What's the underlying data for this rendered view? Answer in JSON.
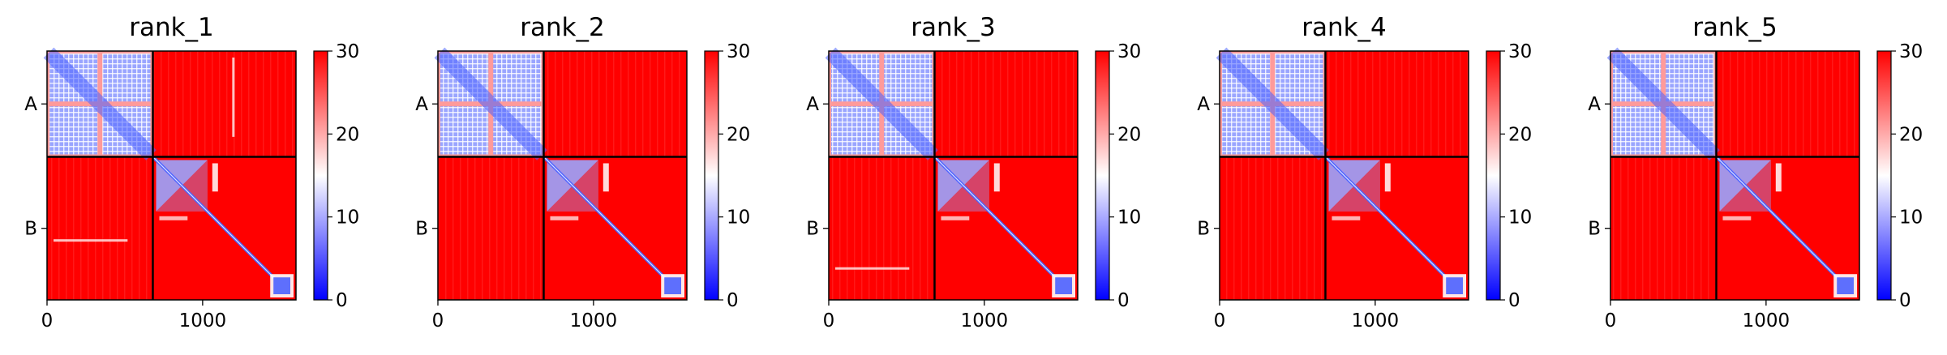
{
  "chart_data": [
    {
      "type": "heatmap",
      "title": "rank_1",
      "xlabel": "",
      "ylabel": "",
      "xlim": [
        0,
        1600
      ],
      "x_ticks": [
        "0",
        "1000"
      ],
      "y_tick_labels": [
        "A",
        "B"
      ],
      "chain_boundary": 680,
      "colorbar": {
        "min": 0,
        "max": 30,
        "ticks": [
          "0",
          "10",
          "20",
          "30"
        ],
        "colormap": "bwr"
      },
      "stray_lines_x": [
        1190
      ],
      "stray_lines_y": [
        1210
      ]
    },
    {
      "type": "heatmap",
      "title": "rank_2",
      "xlabel": "",
      "ylabel": "",
      "xlim": [
        0,
        1600
      ],
      "x_ticks": [
        "0",
        "1000"
      ],
      "y_tick_labels": [
        "A",
        "B"
      ],
      "chain_boundary": 680,
      "colorbar": {
        "min": 0,
        "max": 30,
        "ticks": [
          "0",
          "10",
          "20",
          "30"
        ],
        "colormap": "bwr"
      },
      "stray_lines_x": [],
      "stray_lines_y": []
    },
    {
      "type": "heatmap",
      "title": "rank_3",
      "xlabel": "",
      "ylabel": "",
      "xlim": [
        0,
        1600
      ],
      "x_ticks": [
        "0",
        "1000"
      ],
      "y_tick_labels": [
        "A",
        "B"
      ],
      "chain_boundary": 680,
      "colorbar": {
        "min": 0,
        "max": 30,
        "ticks": [
          "0",
          "10",
          "20",
          "30"
        ],
        "colormap": "bwr"
      },
      "stray_lines_x": [],
      "stray_lines_y": [
        1390
      ]
    },
    {
      "type": "heatmap",
      "title": "rank_4",
      "xlabel": "",
      "ylabel": "",
      "xlim": [
        0,
        1600
      ],
      "x_ticks": [
        "0",
        "1000"
      ],
      "y_tick_labels": [
        "A",
        "B"
      ],
      "chain_boundary": 680,
      "colorbar": {
        "min": 0,
        "max": 30,
        "ticks": [
          "0",
          "10",
          "20",
          "30"
        ],
        "colormap": "bwr"
      },
      "stray_lines_x": [],
      "stray_lines_y": []
    },
    {
      "type": "heatmap",
      "title": "rank_5",
      "xlabel": "",
      "ylabel": "",
      "xlim": [
        0,
        1600
      ],
      "x_ticks": [
        "0",
        "1000"
      ],
      "y_tick_labels": [
        "A",
        "B"
      ],
      "chain_boundary": 680,
      "colorbar": {
        "min": 0,
        "max": 30,
        "ticks": [
          "0",
          "10",
          "20",
          "30"
        ],
        "colormap": "bwr"
      },
      "stray_lines_x": [],
      "stray_lines_y": []
    }
  ],
  "colors": {
    "high": "#ff0000",
    "mid": "#ffffff",
    "low": "#0000ff",
    "light_blue": "#9aa5ff",
    "mid_blue": "#4c62ff",
    "pink": "#ff9a9a",
    "grid_white": "#ffeeee",
    "frame": "#000000"
  }
}
